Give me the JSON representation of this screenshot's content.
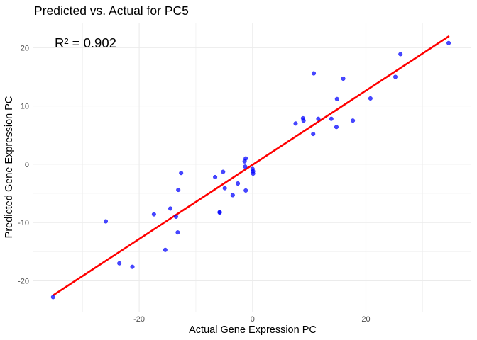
{
  "chart_data": {
    "type": "scatter",
    "title": "Predicted vs. Actual for PC5",
    "xlabel": "Actual Gene Expression PC",
    "ylabel": "Predicted Gene Expression PC",
    "annotation": "R² = 0.902",
    "xlim": [
      -38.8,
      38.6
    ],
    "ylim": [
      -25.3,
      24.3
    ],
    "x_ticks": [
      -20,
      0,
      20
    ],
    "y_ticks": [
      -20,
      -10,
      0,
      10,
      20
    ],
    "grid": true,
    "legend": "none",
    "colors": {
      "points": "#0000ff",
      "fit_line": "#ff0000",
      "grid": "#ebebeb"
    },
    "fit_line": {
      "x": [
        -35.2,
        34.7
      ],
      "y": [
        -22.5,
        22.0
      ]
    },
    "points": [
      {
        "x": -35.2,
        "y": -22.8
      },
      {
        "x": -25.9,
        "y": -9.8
      },
      {
        "x": -23.5,
        "y": -17.0
      },
      {
        "x": -21.2,
        "y": -17.6
      },
      {
        "x": -17.4,
        "y": -8.6
      },
      {
        "x": -15.4,
        "y": -14.7
      },
      {
        "x": -14.5,
        "y": -7.6
      },
      {
        "x": -13.5,
        "y": -9.0
      },
      {
        "x": -13.2,
        "y": -11.7
      },
      {
        "x": -13.1,
        "y": -4.4
      },
      {
        "x": -12.6,
        "y": -1.5
      },
      {
        "x": -6.6,
        "y": -2.2
      },
      {
        "x": -5.8,
        "y": -8.3
      },
      {
        "x": -5.8,
        "y": -8.2
      },
      {
        "x": -5.2,
        "y": -1.3
      },
      {
        "x": -4.9,
        "y": -4.1
      },
      {
        "x": -3.5,
        "y": -5.3
      },
      {
        "x": -2.6,
        "y": -3.3
      },
      {
        "x": -1.4,
        "y": 0.5
      },
      {
        "x": -1.3,
        "y": -0.4
      },
      {
        "x": -1.2,
        "y": 1.0
      },
      {
        "x": -1.2,
        "y": -4.5
      },
      {
        "x": 0.0,
        "y": -0.8
      },
      {
        "x": 0.1,
        "y": -1.2
      },
      {
        "x": 0.1,
        "y": -1.6
      },
      {
        "x": 7.6,
        "y": 7.0
      },
      {
        "x": 8.9,
        "y": 7.9
      },
      {
        "x": 9.0,
        "y": 7.5
      },
      {
        "x": 10.7,
        "y": 5.2
      },
      {
        "x": 10.8,
        "y": 15.6
      },
      {
        "x": 11.6,
        "y": 7.8
      },
      {
        "x": 13.9,
        "y": 7.8
      },
      {
        "x": 14.8,
        "y": 6.4
      },
      {
        "x": 14.9,
        "y": 11.2
      },
      {
        "x": 16.0,
        "y": 14.7
      },
      {
        "x": 17.7,
        "y": 7.5
      },
      {
        "x": 20.8,
        "y": 11.3
      },
      {
        "x": 25.2,
        "y": 15.0
      },
      {
        "x": 26.1,
        "y": 18.9
      },
      {
        "x": 34.6,
        "y": 20.8
      }
    ]
  }
}
